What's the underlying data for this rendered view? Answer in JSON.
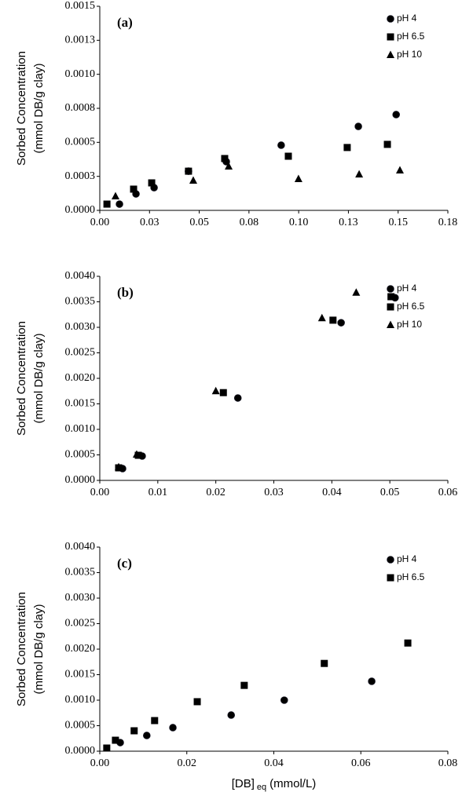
{
  "chart_data": [
    {
      "type": "scatter",
      "panel_label": "(a)",
      "ylabel": [
        "Sorbed Concentration",
        "(mmol DB/g clay)"
      ],
      "xlim": [
        0,
        0.175
      ],
      "ylim": [
        0,
        0.0015
      ],
      "xticks": [
        {
          "value": 0,
          "label": "0.00"
        },
        {
          "value": 0.025,
          "label": "0.03"
        },
        {
          "value": 0.05,
          "label": "0.05"
        },
        {
          "value": 0.075,
          "label": "0.08"
        },
        {
          "value": 0.1,
          "label": "0.10"
        },
        {
          "value": 0.125,
          "label": "0.13"
        },
        {
          "value": 0.15,
          "label": "0.15"
        },
        {
          "value": 0.175,
          "label": "0.18"
        }
      ],
      "yticks": [
        {
          "value": 0,
          "label": "0.0000"
        },
        {
          "value": 0.00025,
          "label": "0.0003"
        },
        {
          "value": 0.0005,
          "label": "0.0005"
        },
        {
          "value": 0.00075,
          "label": "0.0008"
        },
        {
          "value": 0.001,
          "label": "0.0010"
        },
        {
          "value": 0.00125,
          "label": "0.0013"
        },
        {
          "value": 0.0015,
          "label": "0.0015"
        }
      ],
      "legend": "upper right",
      "series": [
        {
          "name": "pH 4",
          "color": "#000000",
          "marker": "circle",
          "x": [
            0.0099,
            0.0182,
            0.0273,
            0.0446,
            0.0636,
            0.0912,
            0.13,
            0.149
          ],
          "values": [
            4.6e-05,
            0.000121,
            0.000167,
            0.000288,
            0.000358,
            0.000479,
            0.000617,
            0.000704
          ]
        },
        {
          "name": "pH 6.5",
          "color": "#000000",
          "marker": "square",
          "x": [
            0.0036,
            0.017,
            0.0261,
            0.0446,
            0.0628,
            0.0948,
            0.1244,
            0.1446
          ],
          "values": [
            4.6e-05,
            0.000156,
            0.000202,
            0.000288,
            0.000381,
            0.000398,
            0.000462,
            0.000485
          ]
        },
        {
          "name": "pH 10",
          "color": "#000000",
          "marker": "triangle",
          "x": [
            0.0079,
            0.047,
            0.0648,
            0.0999,
            0.1304,
            0.1509
          ],
          "values": [
            0.000104,
            0.000219,
            0.000323,
            0.000231,
            0.000265,
            0.000294
          ]
        }
      ]
    },
    {
      "type": "scatter",
      "panel_label": "(b)",
      "ylabel": [
        "Sorbed Concentration",
        "(mmol DB/g clay)"
      ],
      "xlim": [
        0,
        0.06
      ],
      "ylim": [
        0,
        0.004
      ],
      "xticks": [
        {
          "value": 0,
          "label": "0.00"
        },
        {
          "value": 0.01,
          "label": "0.01"
        },
        {
          "value": 0.02,
          "label": "0.02"
        },
        {
          "value": 0.03,
          "label": "0.03"
        },
        {
          "value": 0.04,
          "label": "0.04"
        },
        {
          "value": 0.05,
          "label": "0.05"
        },
        {
          "value": 0.06,
          "label": "0.06"
        }
      ],
      "yticks": [
        {
          "value": 0,
          "label": "0.0000"
        },
        {
          "value": 0.0005,
          "label": "0.0005"
        },
        {
          "value": 0.001,
          "label": "0.0010"
        },
        {
          "value": 0.0015,
          "label": "0.0015"
        },
        {
          "value": 0.002,
          "label": "0.0020"
        },
        {
          "value": 0.0025,
          "label": "0.0025"
        },
        {
          "value": 0.003,
          "label": "0.0030"
        },
        {
          "value": 0.0035,
          "label": "0.0035"
        },
        {
          "value": 0.004,
          "label": "0.0040"
        }
      ],
      "legend": "upper right",
      "series": [
        {
          "name": "pH 4",
          "color": "#000000",
          "marker": "circle",
          "x": [
            0.00393,
            0.00731,
            0.0238,
            0.0416,
            0.0509
          ],
          "values": [
            0.000231,
            0.000477,
            0.001615,
            0.00309,
            0.00358
          ]
        },
        {
          "name": "pH 6.5",
          "color": "#000000",
          "marker": "square",
          "x": [
            0.00325,
            0.00664,
            0.0213,
            0.0402,
            0.0502
          ],
          "values": [
            0.000246,
            0.000492,
            0.00172,
            0.00314,
            0.0036
          ]
        },
        {
          "name": "pH 10",
          "color": "#000000",
          "marker": "triangle",
          "x": [
            0.00325,
            0.00636,
            0.02,
            0.0383,
            0.0442
          ],
          "values": [
            0.00026,
            0.000508,
            0.00175,
            0.00318,
            0.00368
          ]
        }
      ]
    },
    {
      "type": "scatter",
      "panel_label": "(c)",
      "ylabel": [
        "Sorbed Concentration",
        "(mmol DB/g clay)"
      ],
      "xlabel": [
        "[DB]",
        "eq",
        "(mmol/L)"
      ],
      "xlim": [
        0,
        0.08
      ],
      "ylim": [
        0,
        0.004
      ],
      "xticks": [
        {
          "value": 0,
          "label": "0.00"
        },
        {
          "value": 0.02,
          "label": "0.02"
        },
        {
          "value": 0.04,
          "label": "0.04"
        },
        {
          "value": 0.06,
          "label": "0.06"
        },
        {
          "value": 0.08,
          "label": "0.08"
        }
      ],
      "yticks": [
        {
          "value": 0,
          "label": "0.0000"
        },
        {
          "value": 0.0005,
          "label": "0.0005"
        },
        {
          "value": 0.001,
          "label": "0.0010"
        },
        {
          "value": 0.0015,
          "label": "0.0015"
        },
        {
          "value": 0.002,
          "label": "0.0020"
        },
        {
          "value": 0.0025,
          "label": "0.0025"
        },
        {
          "value": 0.003,
          "label": "0.0030"
        },
        {
          "value": 0.0035,
          "label": "0.0035"
        },
        {
          "value": 0.004,
          "label": "0.0040"
        }
      ],
      "legend": "upper right",
      "series": [
        {
          "name": "pH 4",
          "color": "#000000",
          "marker": "circle",
          "x": [
            0.0047,
            0.0108,
            0.0168,
            0.0302,
            0.0424,
            0.0625
          ],
          "values": [
            0.000169,
            0.000308,
            0.000462,
            0.000708,
            0.001,
            0.00137
          ]
        },
        {
          "name": "pH 6.5",
          "color": "#000000",
          "marker": "square",
          "x": [
            0.0016,
            0.0036,
            0.0079,
            0.0126,
            0.0224,
            0.0332,
            0.0516,
            0.0708
          ],
          "values": [
            6.15e-05,
            0.000215,
            0.0004,
            0.0006,
            0.00097,
            0.00129,
            0.00172,
            0.00212
          ]
        }
      ]
    }
  ]
}
